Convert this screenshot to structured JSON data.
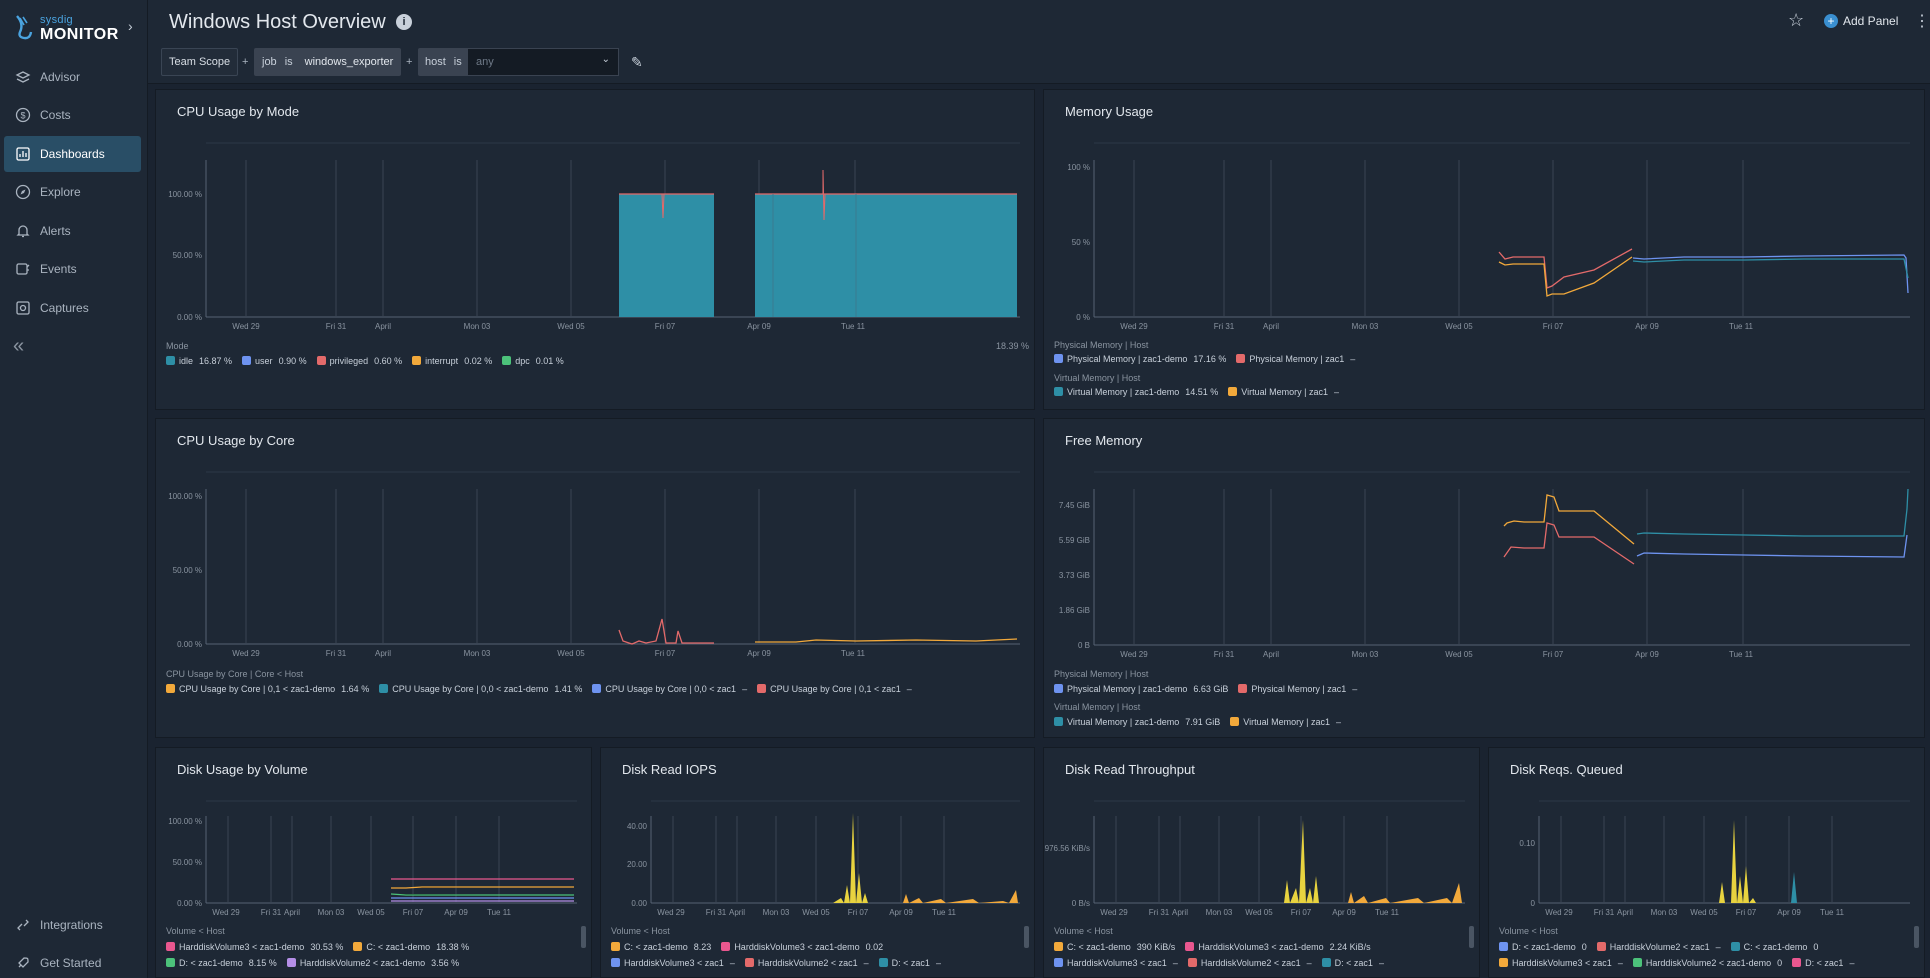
{
  "app": {
    "brand_top": "sysdig",
    "brand_name": "MONITOR"
  },
  "nav": [
    {
      "label": "Advisor",
      "icon": "advisor-icon"
    },
    {
      "label": "Costs",
      "icon": "dollar-icon"
    },
    {
      "label": "Dashboards",
      "icon": "dashboard-icon"
    },
    {
      "label": "Explore",
      "icon": "compass-icon"
    },
    {
      "label": "Alerts",
      "icon": "bell-icon"
    },
    {
      "label": "Events",
      "icon": "events-icon"
    },
    {
      "label": "Captures",
      "icon": "capture-icon"
    }
  ],
  "bottom_nav": [
    {
      "label": "Integrations"
    },
    {
      "label": "Get Started"
    }
  ],
  "header": {
    "title": "Windows Host Overview",
    "add_panel": "Add Panel"
  },
  "scope": {
    "team": "Team Scope",
    "op": "+",
    "job_key": "job",
    "job_is": "is",
    "job_value": "windows_exporter",
    "host_key": "host",
    "host_is": "is",
    "host_placeholder": "any"
  },
  "colors": {
    "teal": "#2e8fa6",
    "blue": "#6e93f0",
    "red": "#e36a6a",
    "orange": "#f2a93b",
    "green": "#4cc27a",
    "yellow": "#e8d33f",
    "purple": "#b48ee6",
    "pink": "#e9578f"
  },
  "panels": {
    "cpu_mode": {
      "title": "CPU Usage by Mode",
      "yticks": [
        "100.00 %",
        "50.00 %",
        "0.00 %"
      ],
      "xticks": [
        "Wed 29",
        "Fri 31",
        "April",
        "Mon 03",
        "Wed 05",
        "Fri 07",
        "Apr 09",
        "Tue 11"
      ],
      "group": "Mode",
      "total": "18.39 %",
      "legend": [
        {
          "name": "idle",
          "value": "16.87 %",
          "color": "#2e8fa6"
        },
        {
          "name": "user",
          "value": "0.90 %",
          "color": "#6e93f0"
        },
        {
          "name": "privileged",
          "value": "0.60 %",
          "color": "#e36a6a"
        },
        {
          "name": "interrupt",
          "value": "0.02 %",
          "color": "#f2a93b"
        },
        {
          "name": "dpc",
          "value": "0.01 %",
          "color": "#4cc27a"
        }
      ]
    },
    "memory": {
      "title": "Memory Usage",
      "yticks": [
        "100 %",
        "50 %",
        "0 %"
      ],
      "xticks": [
        "Wed 29",
        "Fri 31",
        "April",
        "Mon 03",
        "Wed 05",
        "Fri 07",
        "Apr 09",
        "Tue 11"
      ],
      "group1": "Physical Memory | Host",
      "group2": "Virtual Memory | Host",
      "legend1": [
        {
          "name": "Physical Memory | zac1-demo",
          "value": "17.16 %",
          "color": "#6e93f0"
        },
        {
          "name": "Physical Memory | zac1",
          "value": "–",
          "color": "#e36a6a"
        }
      ],
      "legend2": [
        {
          "name": "Virtual Memory | zac1-demo",
          "value": "14.51 %",
          "color": "#2e8fa6"
        },
        {
          "name": "Virtual Memory | zac1",
          "value": "–",
          "color": "#f2a93b"
        }
      ]
    },
    "cpu_core": {
      "title": "CPU Usage by Core",
      "yticks": [
        "100.00 %",
        "50.00 %",
        "0.00 %"
      ],
      "xticks": [
        "Wed 29",
        "Fri 31",
        "April",
        "Mon 03",
        "Wed 05",
        "Fri 07",
        "Apr 09",
        "Tue 11"
      ],
      "group": "CPU Usage by Core | Core < Host",
      "legend": [
        {
          "name": "CPU Usage by Core | 0,1 < zac1-demo",
          "value": "1.64 %",
          "color": "#f2a93b"
        },
        {
          "name": "CPU Usage by Core | 0,0 < zac1-demo",
          "value": "1.41 %",
          "color": "#2e8fa6"
        },
        {
          "name": "CPU Usage by Core | 0,0 < zac1",
          "value": "–",
          "color": "#6e93f0"
        },
        {
          "name": "CPU Usage by Core | 0,1 < zac1",
          "value": "–",
          "color": "#e36a6a"
        }
      ]
    },
    "free_memory": {
      "title": "Free Memory",
      "yticks": [
        "7.45 GiB",
        "5.59 GiB",
        "3.73 GiB",
        "1.86 GiB",
        "0 B"
      ],
      "xticks": [
        "Wed 29",
        "Fri 31",
        "April",
        "Mon 03",
        "Wed 05",
        "Fri 07",
        "Apr 09",
        "Tue 11"
      ],
      "group1": "Physical Memory | Host",
      "group2": "Virtual Memory | Host",
      "legend1": [
        {
          "name": "Physical Memory | zac1-demo",
          "value": "6.63 GiB",
          "color": "#6e93f0"
        },
        {
          "name": "Physical Memory | zac1",
          "value": "–",
          "color": "#e36a6a"
        }
      ],
      "legend2": [
        {
          "name": "Virtual Memory | zac1-demo",
          "value": "7.91 GiB",
          "color": "#2e8fa6"
        },
        {
          "name": "Virtual Memory | zac1",
          "value": "–",
          "color": "#f2a93b"
        }
      ]
    },
    "disk_usage": {
      "title": "Disk Usage by Volume",
      "yticks": [
        "100.00 %",
        "50.00 %",
        "0.00 %"
      ],
      "xticks": [
        "Wed 29",
        "Fri 31",
        "April",
        "Mon 03",
        "Wed 05",
        "Fri 07",
        "Apr 09",
        "Tue 11"
      ],
      "group": "Volume < Host",
      "legend1": [
        {
          "name": "HarddiskVolume3 < zac1-demo",
          "value": "30.53 %",
          "color": "#e9578f"
        },
        {
          "name": "C: < zac1-demo",
          "value": "18.38 %",
          "color": "#f2a93b"
        }
      ],
      "legend2": [
        {
          "name": "D: < zac1-demo",
          "value": "8.15 %",
          "color": "#4cc27a"
        },
        {
          "name": "HarddiskVolume2 < zac1-demo",
          "value": "3.56 %",
          "color": "#b48ee6"
        }
      ]
    },
    "disk_iops": {
      "title": "Disk Read IOPS",
      "yticks": [
        "40.00",
        "20.00",
        "0.00"
      ],
      "xticks": [
        "Wed 29",
        "Fri 31",
        "April",
        "Mon 03",
        "Wed 05",
        "Fri 07",
        "Apr 09",
        "Tue 11"
      ],
      "group": "Volume < Host",
      "legend1": [
        {
          "name": "C: < zac1-demo",
          "value": "8.23",
          "color": "#f2a93b"
        },
        {
          "name": "HarddiskVolume3 < zac1-demo",
          "value": "0.02",
          "color": "#e9578f"
        }
      ],
      "legend2": [
        {
          "name": "HarddiskVolume3 < zac1",
          "value": "–",
          "color": "#6e93f0"
        },
        {
          "name": "HarddiskVolume2 < zac1",
          "value": "–",
          "color": "#e36a6a"
        },
        {
          "name": "D: < zac1",
          "value": "–",
          "color": "#2e8fa6"
        }
      ]
    },
    "disk_throughput": {
      "title": "Disk Read Throughput",
      "yticks": [
        "976.56 KiB/s",
        "0 B/s"
      ],
      "xticks": [
        "Wed 29",
        "Fri 31",
        "April",
        "Mon 03",
        "Wed 05",
        "Fri 07",
        "Apr 09",
        "Tue 11"
      ],
      "group": "Volume < Host",
      "legend1": [
        {
          "name": "C: < zac1-demo",
          "value": "390 KiB/s",
          "color": "#f2a93b"
        },
        {
          "name": "HarddiskVolume3 < zac1-demo",
          "value": "2.24 KiB/s",
          "color": "#e9578f"
        }
      ],
      "legend2": [
        {
          "name": "HarddiskVolume3 < zac1",
          "value": "–",
          "color": "#6e93f0"
        },
        {
          "name": "HarddiskVolume2 < zac1",
          "value": "–",
          "color": "#e36a6a"
        },
        {
          "name": "D: < zac1",
          "value": "–",
          "color": "#2e8fa6"
        }
      ]
    },
    "disk_queued": {
      "title": "Disk Reqs. Queued",
      "yticks": [
        "0.10",
        "0"
      ],
      "xticks": [
        "Wed 29",
        "Fri 31",
        "April",
        "Mon 03",
        "Wed 05",
        "Fri 07",
        "Apr 09",
        "Tue 11"
      ],
      "group": "Volume < Host",
      "legend1": [
        {
          "name": "D: < zac1-demo",
          "value": "0",
          "color": "#6e93f0"
        },
        {
          "name": "HarddiskVolume2 < zac1",
          "value": "–",
          "color": "#e36a6a"
        },
        {
          "name": "C: < zac1-demo",
          "value": "0",
          "color": "#2e8fa6"
        }
      ],
      "legend2": [
        {
          "name": "HarddiskVolume3 < zac1",
          "value": "–",
          "color": "#f2a93b"
        },
        {
          "name": "HarddiskVolume2 < zac1-demo",
          "value": "0",
          "color": "#4cc27a"
        },
        {
          "name": "D: < zac1",
          "value": "–",
          "color": "#e9578f"
        }
      ]
    }
  }
}
